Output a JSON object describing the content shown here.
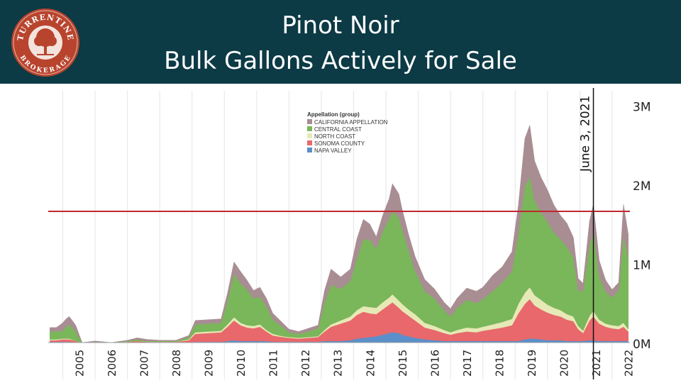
{
  "header": {
    "title_line1": "Pinot Noir",
    "title_line2": "Bulk Gallons Actively for Sale",
    "background_color": "#0c3a45",
    "logo": {
      "text_top": "TURRENTINE",
      "text_bottom": "BROKERAGE",
      "icon": "tree-icon",
      "color": "#b8442e"
    }
  },
  "chart_data": {
    "type": "area",
    "stacked": true,
    "x_type": "year",
    "x": [
      2004.6,
      2004.8,
      2005.0,
      2005.1,
      2005.2,
      2005.4,
      2005.6,
      2006.0,
      2006.5,
      2007.0,
      2007.3,
      2007.6,
      2008.0,
      2008.5,
      2008.9,
      2009.1,
      2009.5,
      2009.9,
      2010.1,
      2010.3,
      2010.5,
      2010.7,
      2010.9,
      2011.1,
      2011.3,
      2011.5,
      2011.8,
      2012.0,
      2012.3,
      2012.6,
      2012.9,
      2013.1,
      2013.3,
      2013.6,
      2013.9,
      2014.1,
      2014.3,
      2014.5,
      2014.7,
      2014.9,
      2015.1,
      2015.2,
      2015.4,
      2015.5,
      2015.7,
      2015.9,
      2016.2,
      2016.5,
      2016.8,
      2017.0,
      2017.2,
      2017.5,
      2017.8,
      2018.0,
      2018.3,
      2018.6,
      2018.9,
      2019.1,
      2019.3,
      2019.45,
      2019.6,
      2019.8,
      2020.0,
      2020.2,
      2020.4,
      2020.6,
      2020.8,
      2020.95,
      2021.1,
      2021.3,
      2021.42,
      2021.6,
      2021.8,
      2022.0,
      2022.2,
      2022.35,
      2022.5
    ],
    "series": [
      {
        "name": "NAPA VALLEY",
        "color": "#5b8fc9",
        "values": [
          0.01,
          0.01,
          0.01,
          0.01,
          0.01,
          0.0,
          0.0,
          0.0,
          0.0,
          0.0,
          0.0,
          0.0,
          0.0,
          0.0,
          0.0,
          0.01,
          0.01,
          0.01,
          0.02,
          0.03,
          0.02,
          0.02,
          0.02,
          0.02,
          0.02,
          0.01,
          0.01,
          0.01,
          0.01,
          0.01,
          0.01,
          0.02,
          0.02,
          0.02,
          0.03,
          0.05,
          0.06,
          0.07,
          0.08,
          0.1,
          0.12,
          0.13,
          0.12,
          0.1,
          0.08,
          0.06,
          0.04,
          0.03,
          0.02,
          0.02,
          0.02,
          0.02,
          0.02,
          0.02,
          0.02,
          0.02,
          0.02,
          0.02,
          0.04,
          0.05,
          0.05,
          0.04,
          0.03,
          0.03,
          0.03,
          0.02,
          0.02,
          0.02,
          0.02,
          0.03,
          0.03,
          0.02,
          0.02,
          0.02,
          0.02,
          0.02,
          0.02
        ]
      },
      {
        "name": "SONOMA COUNTY",
        "color": "#e8686b",
        "values": [
          0.02,
          0.02,
          0.03,
          0.03,
          0.03,
          0.02,
          0.0,
          0.0,
          0.0,
          0.01,
          0.02,
          0.01,
          0.01,
          0.01,
          0.03,
          0.1,
          0.11,
          0.12,
          0.18,
          0.25,
          0.2,
          0.17,
          0.16,
          0.18,
          0.12,
          0.08,
          0.06,
          0.05,
          0.04,
          0.05,
          0.06,
          0.12,
          0.18,
          0.22,
          0.25,
          0.3,
          0.33,
          0.3,
          0.28,
          0.32,
          0.36,
          0.38,
          0.32,
          0.3,
          0.26,
          0.22,
          0.15,
          0.13,
          0.1,
          0.08,
          0.1,
          0.12,
          0.11,
          0.13,
          0.15,
          0.17,
          0.2,
          0.35,
          0.45,
          0.5,
          0.42,
          0.38,
          0.35,
          0.32,
          0.3,
          0.27,
          0.25,
          0.15,
          0.1,
          0.25,
          0.3,
          0.22,
          0.18,
          0.16,
          0.15,
          0.18,
          0.12
        ]
      },
      {
        "name": "NORTH COAST",
        "color": "#e6e9b6",
        "values": [
          0.01,
          0.01,
          0.01,
          0.01,
          0.01,
          0.0,
          0.0,
          0.0,
          0.0,
          0.0,
          0.0,
          0.0,
          0.0,
          0.0,
          0.01,
          0.02,
          0.02,
          0.02,
          0.03,
          0.04,
          0.03,
          0.03,
          0.03,
          0.03,
          0.02,
          0.02,
          0.01,
          0.01,
          0.01,
          0.01,
          0.01,
          0.02,
          0.03,
          0.04,
          0.05,
          0.06,
          0.07,
          0.08,
          0.08,
          0.09,
          0.09,
          0.1,
          0.09,
          0.09,
          0.08,
          0.08,
          0.06,
          0.05,
          0.04,
          0.03,
          0.04,
          0.05,
          0.05,
          0.05,
          0.06,
          0.07,
          0.08,
          0.12,
          0.14,
          0.15,
          0.13,
          0.12,
          0.1,
          0.09,
          0.08,
          0.07,
          0.06,
          0.04,
          0.03,
          0.06,
          0.07,
          0.05,
          0.04,
          0.04,
          0.04,
          0.05,
          0.03
        ]
      },
      {
        "name": "CENTRAL COAST",
        "color": "#7ab65a",
        "values": [
          0.1,
          0.1,
          0.1,
          0.15,
          0.18,
          0.12,
          0.0,
          0.01,
          0.0,
          0.01,
          0.02,
          0.01,
          0.01,
          0.01,
          0.03,
          0.1,
          0.1,
          0.1,
          0.3,
          0.55,
          0.5,
          0.45,
          0.35,
          0.35,
          0.3,
          0.18,
          0.12,
          0.06,
          0.05,
          0.07,
          0.1,
          0.35,
          0.5,
          0.4,
          0.45,
          0.65,
          0.85,
          0.85,
          0.75,
          0.9,
          1.0,
          1.05,
          1.05,
          0.95,
          0.75,
          0.55,
          0.4,
          0.35,
          0.25,
          0.2,
          0.28,
          0.35,
          0.32,
          0.35,
          0.42,
          0.5,
          0.6,
          0.9,
          1.35,
          1.4,
          1.2,
          1.1,
          1.05,
          0.95,
          0.9,
          0.85,
          0.75,
          0.45,
          0.5,
          0.9,
          1.0,
          0.55,
          0.4,
          0.35,
          0.45,
          1.1,
          0.9
        ]
      },
      {
        "name": "CALIFORNIA APPELLATION",
        "color": "#a88d92",
        "values": [
          0.05,
          0.05,
          0.1,
          0.1,
          0.1,
          0.08,
          0.0,
          0.01,
          0.0,
          0.01,
          0.02,
          0.02,
          0.01,
          0.01,
          0.02,
          0.05,
          0.05,
          0.05,
          0.1,
          0.15,
          0.15,
          0.12,
          0.1,
          0.12,
          0.1,
          0.08,
          0.05,
          0.04,
          0.03,
          0.04,
          0.04,
          0.15,
          0.2,
          0.15,
          0.15,
          0.25,
          0.25,
          0.2,
          0.15,
          0.2,
          0.25,
          0.35,
          0.3,
          0.25,
          0.2,
          0.18,
          0.15,
          0.12,
          0.1,
          0.1,
          0.12,
          0.15,
          0.15,
          0.15,
          0.2,
          0.2,
          0.25,
          0.35,
          0.6,
          0.65,
          0.5,
          0.45,
          0.4,
          0.35,
          0.3,
          0.3,
          0.25,
          0.15,
          0.1,
          0.3,
          0.35,
          0.2,
          0.15,
          0.1,
          0.1,
          0.4,
          0.3
        ]
      }
    ],
    "legend_title": "Appellation (group)",
    "legend_order": [
      "CALIFORNIA APPELLATION",
      "CENTRAL COAST",
      "NORTH COAST",
      "SONOMA COUNTY",
      "NAPA VALLEY"
    ],
    "legend_position": "top-center",
    "y_ticks": [
      0,
      1,
      2,
      3
    ],
    "y_tick_labels": [
      "0M",
      "1M",
      "2M",
      "3M"
    ],
    "ylim": [
      0,
      3.15
    ],
    "y_axis_position": "right",
    "x_ticks": [
      2005,
      2006,
      2007,
      2008,
      2009,
      2010,
      2011,
      2012,
      2013,
      2014,
      2015,
      2016,
      2017,
      2018,
      2019,
      2020,
      2021,
      2022
    ],
    "xlim": [
      2004.55,
      2022.55
    ],
    "reference_line": {
      "y": 1.66,
      "color": "#c0282e"
    },
    "vertical_marker": {
      "x": 2021.42,
      "label": "June 3, 2021"
    },
    "grid": "vertical"
  }
}
